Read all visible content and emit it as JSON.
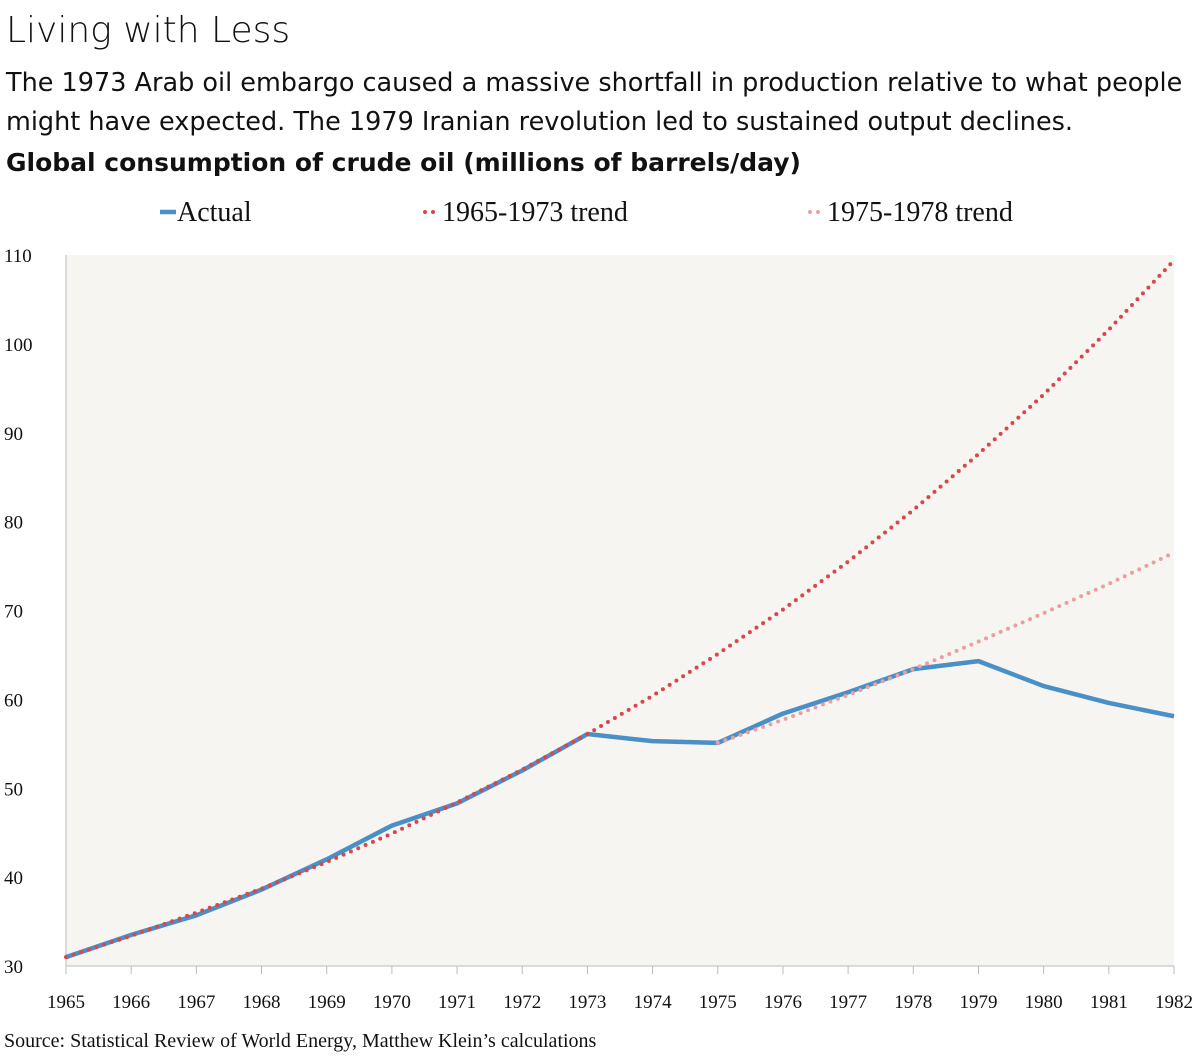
{
  "chart_data": {
    "type": "line",
    "title": "Living with Less",
    "subtitle": "The 1973 Arab oil embargo caused a massive shortfall in production relative to what people might have expected. The 1979 Iranian revolution led to sustained output declines.",
    "y_label": "Global consumption of crude oil (millions of barrels/day)",
    "source": "Source: Statistical Review of World Energy, Matthew Klein’s calculations",
    "x": [
      1965,
      1966,
      1967,
      1968,
      1969,
      1970,
      1971,
      1972,
      1973,
      1974,
      1975,
      1976,
      1977,
      1978,
      1979,
      1980,
      1981,
      1982
    ],
    "xlim": [
      1965,
      1982
    ],
    "xticks": [
      1965,
      1966,
      1967,
      1968,
      1969,
      1970,
      1971,
      1972,
      1973,
      1974,
      1975,
      1976,
      1977,
      1978,
      1979,
      1980,
      1981,
      1982
    ],
    "ylim": [
      30,
      110
    ],
    "yticks": [
      30,
      40,
      50,
      60,
      70,
      80,
      90,
      100,
      110
    ],
    "grid": false,
    "legend": "top",
    "series": [
      {
        "name": "Actual",
        "color": "#4a8fc6",
        "style": "solid",
        "values": [
          31.0,
          33.5,
          35.7,
          38.6,
          42.0,
          45.8,
          48.3,
          52.0,
          56.1,
          55.3,
          55.1,
          58.4,
          60.8,
          63.4,
          64.3,
          61.5,
          59.6,
          58.1
        ]
      },
      {
        "name": "1965-1973 trend",
        "color": "#d9474b",
        "style": "dotted",
        "values": [
          31.0,
          33.4,
          36.0,
          38.7,
          41.7,
          44.9,
          48.4,
          52.1,
          56.1,
          60.4,
          65.1,
          70.1,
          75.5,
          81.3,
          87.6,
          94.3,
          101.6,
          109.4
        ]
      },
      {
        "name": "1975-1978 trend",
        "color": "#eba0a0",
        "style": "dotted",
        "values": [
          null,
          null,
          null,
          null,
          null,
          null,
          null,
          null,
          null,
          null,
          55.1,
          57.7,
          60.5,
          63.4,
          66.5,
          69.7,
          73.0,
          76.5
        ]
      }
    ]
  }
}
